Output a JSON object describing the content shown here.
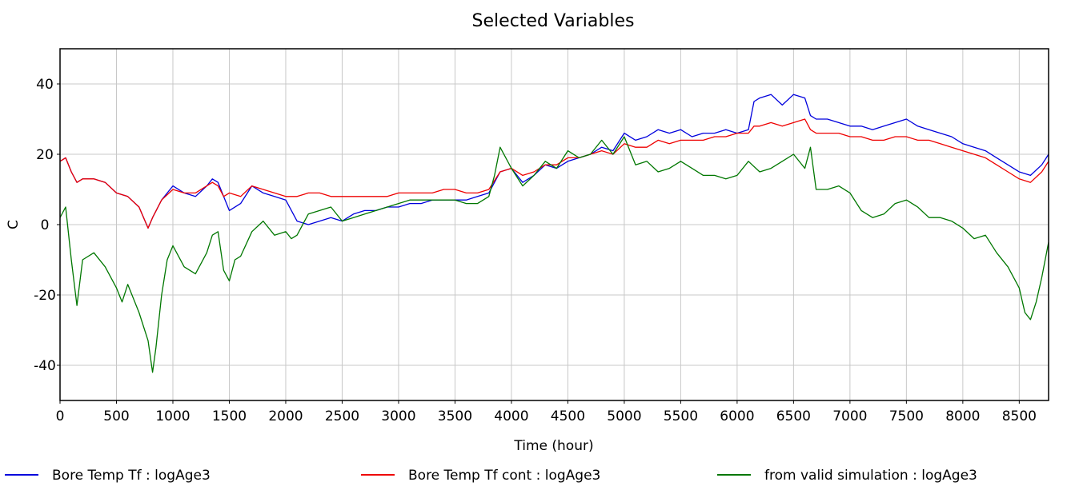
{
  "chart_data": {
    "type": "line",
    "title": "Selected Variables",
    "xlabel": "Time (hour)",
    "ylabel": "C",
    "xlim": [
      0,
      8760
    ],
    "ylim": [
      -50,
      50
    ],
    "xticks": [
      0,
      500,
      1000,
      1500,
      2000,
      2500,
      3000,
      3500,
      4000,
      4500,
      5000,
      5500,
      6000,
      6500,
      7000,
      7500,
      8000,
      8500
    ],
    "yticks": [
      -40,
      -20,
      0,
      20,
      40
    ],
    "grid": true,
    "legend_position": "bottom",
    "series": [
      {
        "name": "Bore Temp Tf : logAge3",
        "color": "#0000dd",
        "x": [
          0,
          50,
          100,
          150,
          200,
          300,
          400,
          500,
          600,
          700,
          780,
          820,
          900,
          1000,
          1100,
          1200,
          1300,
          1350,
          1400,
          1450,
          1500,
          1600,
          1700,
          1800,
          1900,
          2000,
          2100,
          2200,
          2300,
          2400,
          2500,
          2600,
          2700,
          2800,
          2900,
          3000,
          3100,
          3200,
          3300,
          3400,
          3500,
          3600,
          3700,
          3800,
          3900,
          4000,
          4100,
          4200,
          4300,
          4400,
          4500,
          4600,
          4700,
          4800,
          4900,
          5000,
          5100,
          5200,
          5300,
          5400,
          5500,
          5600,
          5700,
          5800,
          5900,
          6000,
          6100,
          6150,
          6200,
          6300,
          6400,
          6500,
          6600,
          6650,
          6700,
          6800,
          6900,
          7000,
          7100,
          7200,
          7300,
          7400,
          7500,
          7600,
          7700,
          7800,
          7900,
          8000,
          8100,
          8200,
          8300,
          8400,
          8500,
          8600,
          8700,
          8760
        ],
        "y": [
          18,
          19,
          15,
          12,
          13,
          13,
          12,
          9,
          8,
          5,
          -1,
          2,
          7,
          11,
          9,
          8,
          11,
          13,
          12,
          8,
          4,
          6,
          11,
          9,
          8,
          7,
          1,
          0,
          1,
          2,
          1,
          3,
          4,
          4,
          5,
          5,
          6,
          6,
          7,
          7,
          7,
          7,
          8,
          9,
          15,
          16,
          12,
          14,
          17,
          16,
          18,
          19,
          20,
          22,
          21,
          26,
          24,
          25,
          27,
          26,
          27,
          25,
          26,
          26,
          27,
          26,
          27,
          35,
          36,
          37,
          34,
          37,
          36,
          31,
          30,
          30,
          29,
          28,
          28,
          27,
          28,
          29,
          30,
          28,
          27,
          26,
          25,
          23,
          22,
          21,
          19,
          17,
          15,
          14,
          17,
          20
        ]
      },
      {
        "name": "Bore Temp Tf cont : logAge3",
        "color": "#ee0000",
        "x": [
          0,
          50,
          100,
          150,
          200,
          300,
          400,
          500,
          600,
          700,
          780,
          820,
          900,
          1000,
          1100,
          1200,
          1300,
          1350,
          1400,
          1450,
          1500,
          1600,
          1700,
          1800,
          1900,
          2000,
          2100,
          2200,
          2300,
          2400,
          2500,
          2600,
          2700,
          2800,
          2900,
          3000,
          3100,
          3200,
          3300,
          3400,
          3500,
          3600,
          3700,
          3800,
          3900,
          4000,
          4100,
          4200,
          4300,
          4400,
          4500,
          4600,
          4700,
          4800,
          4900,
          5000,
          5100,
          5200,
          5300,
          5400,
          5500,
          5600,
          5700,
          5800,
          5900,
          6000,
          6100,
          6150,
          6200,
          6300,
          6400,
          6500,
          6600,
          6650,
          6700,
          6800,
          6900,
          7000,
          7100,
          7200,
          7300,
          7400,
          7500,
          7600,
          7700,
          7800,
          7900,
          8000,
          8100,
          8200,
          8300,
          8400,
          8500,
          8600,
          8700,
          8760
        ],
        "y": [
          18,
          19,
          15,
          12,
          13,
          13,
          12,
          9,
          8,
          5,
          -1,
          2,
          7,
          10,
          9,
          9,
          11,
          12,
          11,
          8,
          9,
          8,
          11,
          10,
          9,
          8,
          8,
          9,
          9,
          8,
          8,
          8,
          8,
          8,
          8,
          9,
          9,
          9,
          9,
          10,
          10,
          9,
          9,
          10,
          15,
          16,
          14,
          15,
          17,
          17,
          19,
          19,
          20,
          21,
          20,
          23,
          22,
          22,
          24,
          23,
          24,
          24,
          24,
          25,
          25,
          26,
          26,
          28,
          28,
          29,
          28,
          29,
          30,
          27,
          26,
          26,
          26,
          25,
          25,
          24,
          24,
          25,
          25,
          24,
          24,
          23,
          22,
          21,
          20,
          19,
          17,
          15,
          13,
          12,
          15,
          18
        ]
      },
      {
        "name": "from valid simulation : logAge3",
        "color": "#007700",
        "x": [
          0,
          50,
          100,
          150,
          200,
          300,
          400,
          500,
          550,
          600,
          700,
          780,
          820,
          850,
          900,
          950,
          1000,
          1100,
          1200,
          1300,
          1350,
          1400,
          1450,
          1500,
          1550,
          1600,
          1700,
          1800,
          1900,
          2000,
          2050,
          2100,
          2200,
          2300,
          2400,
          2500,
          2600,
          2700,
          2800,
          2900,
          3000,
          3100,
          3200,
          3300,
          3400,
          3500,
          3600,
          3700,
          3800,
          3850,
          3900,
          3950,
          4000,
          4100,
          4200,
          4300,
          4400,
          4500,
          4600,
          4700,
          4800,
          4900,
          5000,
          5100,
          5200,
          5300,
          5400,
          5500,
          5600,
          5700,
          5800,
          5900,
          6000,
          6100,
          6200,
          6300,
          6400,
          6500,
          6600,
          6650,
          6700,
          6800,
          6900,
          7000,
          7100,
          7200,
          7300,
          7400,
          7500,
          7600,
          7700,
          7800,
          7900,
          8000,
          8100,
          8200,
          8300,
          8400,
          8500,
          8550,
          8600,
          8650,
          8700,
          8760
        ],
        "y": [
          2,
          5,
          -10,
          -23,
          -10,
          -8,
          -12,
          -18,
          -22,
          -17,
          -25,
          -33,
          -42,
          -35,
          -20,
          -10,
          -6,
          -12,
          -14,
          -8,
          -3,
          -2,
          -13,
          -16,
          -10,
          -9,
          -2,
          1,
          -3,
          -2,
          -4,
          -3,
          3,
          4,
          5,
          1,
          2,
          3,
          4,
          5,
          6,
          7,
          7,
          7,
          7,
          7,
          6,
          6,
          8,
          14,
          22,
          19,
          16,
          11,
          14,
          18,
          16,
          21,
          19,
          20,
          24,
          20,
          25,
          17,
          18,
          15,
          16,
          18,
          16,
          14,
          14,
          13,
          14,
          18,
          15,
          16,
          18,
          20,
          16,
          22,
          10,
          10,
          11,
          9,
          4,
          2,
          3,
          6,
          7,
          5,
          2,
          2,
          1,
          -1,
          -4,
          -3,
          -8,
          -12,
          -18,
          -25,
          -27,
          -22,
          -15,
          -5
        ]
      }
    ]
  }
}
